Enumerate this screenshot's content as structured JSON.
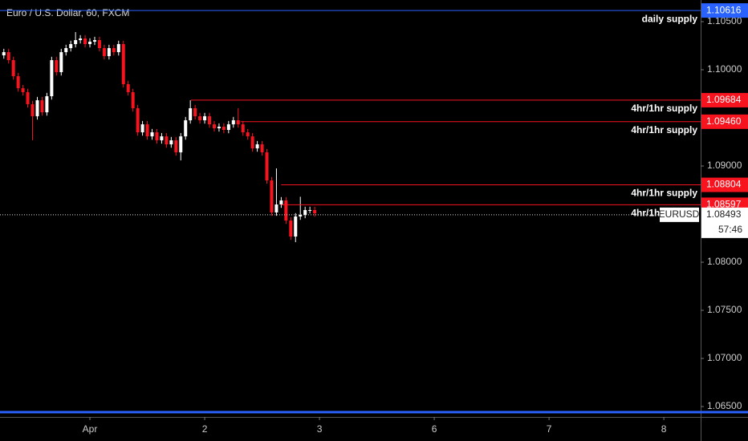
{
  "chart_data": {
    "type": "candlestick",
    "title": "Euro / U.S. Dollar, 60, FXCM",
    "x": [
      -18,
      -17,
      -16,
      -15,
      -14,
      -13,
      -12,
      -11,
      -10,
      -9,
      -8,
      -7,
      -6,
      -5,
      -4,
      -3,
      -2,
      -1,
      0,
      1,
      2,
      3,
      4,
      5,
      6,
      7,
      8,
      9,
      10,
      11,
      12,
      13,
      14,
      15,
      16,
      17,
      18,
      19,
      20,
      21,
      22,
      23,
      24,
      25,
      26,
      27,
      28,
      29,
      30,
      31,
      32,
      33,
      34,
      35,
      36,
      37,
      38,
      39,
      40,
      41,
      42,
      43,
      44,
      45,
      46,
      47
    ],
    "open": [
      1.1015,
      1.10183,
      1.101,
      1.09933,
      1.09808,
      1.09767,
      1.09642,
      1.09517,
      1.09683,
      1.09558,
      1.09725,
      1.101,
      1.09975,
      1.10183,
      1.10225,
      1.10267,
      1.10308,
      1.10325,
      1.10267,
      1.10292,
      1.10308,
      1.10225,
      1.10142,
      1.10225,
      1.10183,
      1.10267,
      1.0985,
      1.09767,
      1.096,
      1.0935,
      1.09433,
      1.09308,
      1.0935,
      1.09267,
      1.09308,
      1.09225,
      1.09267,
      1.09142,
      1.09308,
      1.09475,
      1.096,
      1.09517,
      1.09475,
      1.09517,
      1.09433,
      1.09392,
      1.09408,
      1.09375,
      1.09433,
      1.09475,
      1.09433,
      1.0935,
      1.09308,
      1.09183,
      1.09225,
      1.09142,
      1.0885,
      1.08517,
      1.086,
      1.08642,
      1.08433,
      1.08267,
      1.08475,
      1.08492,
      1.08542,
      1.08542
    ],
    "high": [
      1.10218,
      1.10218,
      1.10135,
      1.09968,
      1.09843,
      1.09802,
      1.09677,
      1.09718,
      1.09718,
      1.0976,
      1.10135,
      1.10135,
      1.10218,
      1.1026,
      1.10302,
      1.10392,
      1.1036,
      1.1036,
      1.10327,
      1.10343,
      1.10343,
      1.1026,
      1.1026,
      1.1026,
      1.10302,
      1.10302,
      1.09885,
      1.09802,
      1.09635,
      1.09468,
      1.09468,
      1.09385,
      1.09385,
      1.09343,
      1.09343,
      1.09302,
      1.09302,
      1.09343,
      1.0951,
      1.09683,
      1.09635,
      1.09552,
      1.09552,
      1.09552,
      1.09468,
      1.09443,
      1.09443,
      1.09468,
      1.0951,
      1.096,
      1.09468,
      1.09385,
      1.09343,
      1.0926,
      1.0926,
      1.09177,
      1.08885,
      1.08975,
      1.08677,
      1.08677,
      1.08468,
      1.0851,
      1.0868,
      1.08577,
      1.08577,
      1.08577
    ],
    "low": [
      1.10115,
      1.10065,
      1.09898,
      1.09773,
      1.09732,
      1.09607,
      1.09267,
      1.09482,
      1.09523,
      1.09523,
      1.0969,
      1.0994,
      1.0994,
      1.10148,
      1.1019,
      1.10232,
      1.10273,
      1.10232,
      1.10232,
      1.10257,
      1.1019,
      1.10107,
      1.10107,
      1.10148,
      1.10148,
      1.09815,
      1.09732,
      1.09565,
      1.09315,
      1.09315,
      1.09273,
      1.09273,
      1.09232,
      1.09232,
      1.0919,
      1.0919,
      1.09107,
      1.09058,
      1.09273,
      1.0944,
      1.09482,
      1.0944,
      1.0944,
      1.09398,
      1.09357,
      1.09357,
      1.0934,
      1.0934,
      1.09398,
      1.09398,
      1.09315,
      1.09273,
      1.09148,
      1.09148,
      1.09107,
      1.08815,
      1.08482,
      1.08482,
      1.08565,
      1.08398,
      1.08232,
      1.08208,
      1.0844,
      1.08457,
      1.08507,
      1.08473
    ],
    "close": [
      1.10183,
      1.101,
      1.09933,
      1.09808,
      1.09767,
      1.09642,
      1.09517,
      1.09683,
      1.09558,
      1.09725,
      1.101,
      1.09975,
      1.10183,
      1.10225,
      1.10267,
      1.10308,
      1.10325,
      1.10267,
      1.10292,
      1.10308,
      1.10225,
      1.10142,
      1.10225,
      1.10183,
      1.10267,
      1.0985,
      1.09767,
      1.096,
      1.0935,
      1.09433,
      1.09308,
      1.0935,
      1.09267,
      1.09308,
      1.09225,
      1.09267,
      1.09142,
      1.09308,
      1.09475,
      1.096,
      1.09517,
      1.09475,
      1.09517,
      1.09433,
      1.09392,
      1.09408,
      1.09375,
      1.09433,
      1.09475,
      1.09433,
      1.0935,
      1.09308,
      1.09183,
      1.09225,
      1.09142,
      1.0885,
      1.08517,
      1.086,
      1.08642,
      1.08433,
      1.08267,
      1.08475,
      1.08492,
      1.08542,
      1.08542,
      1.08508
    ],
    "up_color": "#ffffff",
    "down_color": "#f7141f",
    "xlim": [
      -18.8,
      127.7
    ],
    "xticks": [
      {
        "value": 0,
        "label": "Apr"
      },
      {
        "value": 24,
        "label": "2"
      },
      {
        "value": 48,
        "label": "3"
      },
      {
        "value": 72,
        "label": "6"
      },
      {
        "value": 96,
        "label": "7"
      },
      {
        "value": 120,
        "label": "8"
      }
    ],
    "ylim": [
      1.06392,
      1.10725
    ],
    "yticks": [
      {
        "value": 1.105,
        "label": "1.10500"
      },
      {
        "value": 1.1,
        "label": "1.10000"
      },
      {
        "value": 1.09,
        "label": "1.09000"
      },
      {
        "value": 1.08,
        "label": "1.08000"
      },
      {
        "value": 1.075,
        "label": "1.07500"
      },
      {
        "value": 1.07,
        "label": "1.07000"
      },
      {
        "value": 1.065,
        "label": "1.06500"
      }
    ],
    "levels": [
      {
        "price": {
          "value": 1.10616,
          "label": "1.10616"
        },
        "color": "#2962ff",
        "label": "daily supply",
        "start_x": -18.8
      },
      {
        "price": {
          "value": 1.09684,
          "label": "1.09684"
        },
        "color": "#f7141f",
        "label": "4hr/1hr supply",
        "start_x": 21.1
      },
      {
        "price": {
          "value": 1.0946,
          "label": "1.09460"
        },
        "color": "#f7141f",
        "label": "4hr/1hr supply",
        "start_x": 31.5
      },
      {
        "price": {
          "value": 1.08804,
          "label": "1.08804"
        },
        "color": "#f7141f",
        "label": "4hr/1hr supply",
        "start_x": 40
      },
      {
        "price": {
          "value": 1.08597,
          "label": "1.08597"
        },
        "color": "#f7141f",
        "label": "4hr/1hr supply",
        "start_x": 40
      }
    ],
    "bottom_line": {
      "price": 1.06442,
      "color": "#2962ff"
    },
    "current_price": {
      "value": 1.08493,
      "label": "1.08493"
    },
    "symbol": "EURUSD",
    "countdown": "57:46"
  }
}
